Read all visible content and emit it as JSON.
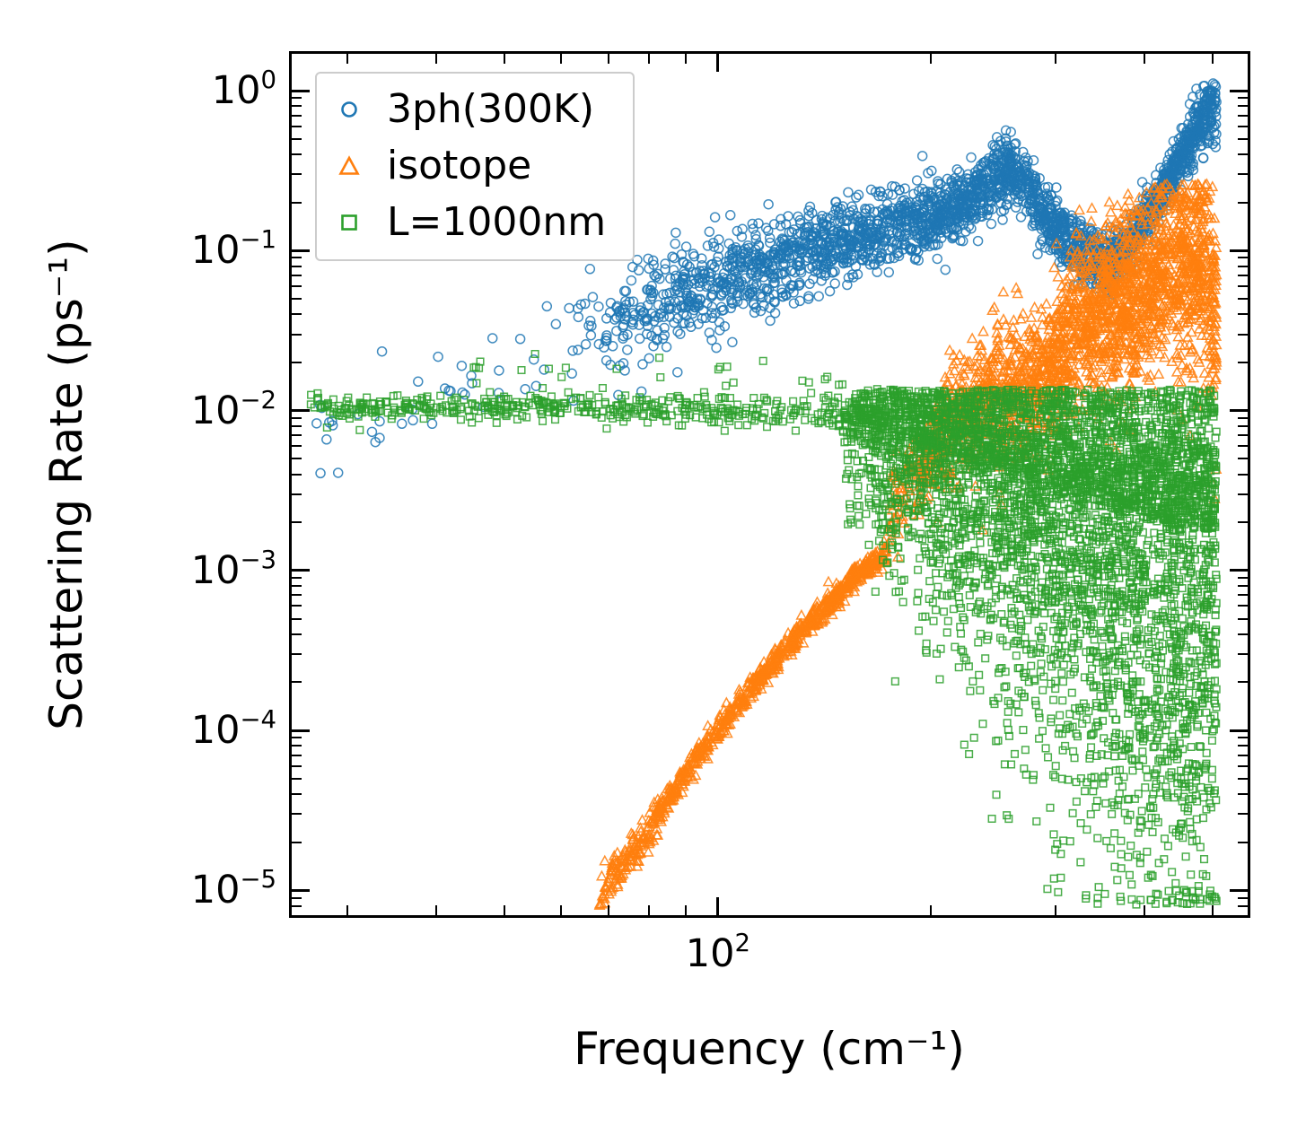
{
  "chart_data": {
    "type": "scatter",
    "title": "",
    "xlabel": "Frequency (cm⁻¹)",
    "ylabel": "Scattering Rate (ps⁻¹)",
    "xscale": "log",
    "yscale": "log",
    "xlim": [
      25,
      560
    ],
    "ylim": [
      7e-06,
      1.7
    ],
    "grid": false,
    "legend_position": "upper left",
    "x_major_ticks": [
      {
        "value": 100,
        "exponent": "2"
      }
    ],
    "x_minor_ticks": [
      30,
      40,
      50,
      60,
      70,
      80,
      90,
      200,
      300,
      400,
      500
    ],
    "y_major_ticks": [
      {
        "value": 1,
        "exponent": "0"
      },
      {
        "value": 0.1,
        "exponent": "−1"
      },
      {
        "value": 0.01,
        "exponent": "−2"
      },
      {
        "value": 0.001,
        "exponent": "−3"
      },
      {
        "value": 0.0001,
        "exponent": "−4"
      },
      {
        "value": 1e-05,
        "exponent": "−5"
      }
    ],
    "series": [
      {
        "name": "3ph(300K)",
        "color": "#1f77b4",
        "marker": "circle",
        "marker_px": 5,
        "components": [
          {
            "count": 42,
            "x_range": [
              27,
              66
            ],
            "x_power": 1.0,
            "trend": [
              [
                27,
                0.0068
              ],
              [
                40,
                0.013
              ],
              [
                55,
                0.02
              ],
              [
                66,
                0.027
              ]
            ],
            "spread": [
              [
                27,
                0.2
              ],
              [
                66,
                0.17
              ]
            ],
            "clip": [
              0.004,
              0.05
            ]
          },
          {
            "count": 2600,
            "x_range": [
              62,
              506
            ],
            "x_power": 0.62,
            "trend": [
              [
                62,
                0.028
              ],
              [
                80,
                0.045
              ],
              [
                100,
                0.065
              ],
              [
                125,
                0.09
              ],
              [
                150,
                0.115
              ],
              [
                175,
                0.14
              ],
              [
                200,
                0.165
              ],
              [
                225,
                0.2
              ],
              [
                245,
                0.27
              ],
              [
                257,
                0.34
              ],
              [
                268,
                0.28
              ],
              [
                285,
                0.18
              ],
              [
                305,
                0.13
              ],
              [
                325,
                0.1
              ],
              [
                345,
                0.085
              ],
              [
                360,
                0.085
              ],
              [
                380,
                0.11
              ],
              [
                400,
                0.16
              ],
              [
                420,
                0.22
              ],
              [
                440,
                0.32
              ],
              [
                460,
                0.46
              ],
              [
                478,
                0.62
              ],
              [
                492,
                0.8
              ],
              [
                502,
                0.88
              ],
              [
                506,
                0.7
              ]
            ],
            "spread": [
              [
                62,
                0.2
              ],
              [
                100,
                0.16
              ],
              [
                150,
                0.12
              ],
              [
                250,
                0.1
              ],
              [
                350,
                0.09
              ],
              [
                450,
                0.08
              ],
              [
                506,
                0.1
              ]
            ],
            "clip": [
              0.01,
              1.12
            ]
          }
        ],
        "points": [
          [
            28,
            0.0066
          ],
          [
            31,
            0.0095
          ]
        ]
      },
      {
        "name": "isotope",
        "color": "#ff7f0e",
        "marker": "triangle",
        "marker_px": 5.2,
        "components": [
          {
            "count": 850,
            "x_range": [
              68,
              173
            ],
            "x_power": 0.85,
            "trend": [
              [
                68,
                9e-06
              ],
              [
                80,
                2.4e-05
              ],
              [
                95,
                7.5e-05
              ],
              [
                110,
                0.00017
              ],
              [
                125,
                0.00033
              ],
              [
                140,
                0.00056
              ],
              [
                155,
                0.00088
              ],
              [
                165,
                0.0011
              ],
              [
                173,
                0.0013
              ]
            ],
            "spread": [
              [
                68,
                0.06
              ],
              [
                100,
                0.04
              ],
              [
                173,
                0.035
              ]
            ],
            "clip": [
              7.5e-06,
              0.003
            ]
          },
          {
            "count": 2300,
            "x_range": [
              174,
              506
            ],
            "x_power": 0.7,
            "trend": [
              [
                174,
                0.0022
              ],
              [
                185,
                0.0035
              ],
              [
                196,
                0.005
              ],
              [
                208,
                0.0075
              ],
              [
                220,
                0.0095
              ],
              [
                232,
                0.011
              ],
              [
                244,
                0.0115
              ],
              [
                256,
                0.012
              ],
              [
                268,
                0.014
              ],
              [
                280,
                0.016
              ],
              [
                292,
                0.019
              ],
              [
                304,
                0.023
              ],
              [
                316,
                0.028
              ],
              [
                328,
                0.036
              ],
              [
                338,
                0.048
              ],
              [
                348,
                0.038
              ],
              [
                358,
                0.05
              ],
              [
                368,
                0.042
              ],
              [
                378,
                0.055
              ],
              [
                388,
                0.045
              ],
              [
                398,
                0.065
              ],
              [
                408,
                0.052
              ],
              [
                418,
                0.075
              ],
              [
                428,
                0.06
              ],
              [
                438,
                0.085
              ],
              [
                448,
                0.068
              ],
              [
                458,
                0.095
              ],
              [
                468,
                0.075
              ],
              [
                478,
                0.105
              ],
              [
                488,
                0.08
              ],
              [
                496,
                0.06
              ],
              [
                506,
                0.045
              ]
            ],
            "spread": [
              [
                174,
                0.12
              ],
              [
                210,
                0.18
              ],
              [
                260,
                0.22
              ],
              [
                320,
                0.25
              ],
              [
                400,
                0.3
              ],
              [
                506,
                0.33
              ]
            ],
            "clip": [
              1e-05,
              0.26
            ]
          }
        ],
        "points": [
          [
            253,
            0.055
          ],
          [
            261,
            0.033
          ],
          [
            247,
            0.021
          ],
          [
            499,
            0.0035
          ],
          [
            503,
            0.0028
          ],
          [
            505,
            0.016
          ]
        ]
      },
      {
        "name": "L=1000nm",
        "color": "#2ca02c",
        "marker": "square",
        "marker_px": 4.6,
        "components": [
          {
            "count": 480,
            "x_range": [
              26.5,
              172
            ],
            "x_power": 1.05,
            "trend": [
              [
                26.5,
                0.0105
              ],
              [
                50,
                0.0104
              ],
              [
                80,
                0.0102
              ],
              [
                110,
                0.0099
              ],
              [
                140,
                0.0096
              ],
              [
                172,
                0.0092
              ]
            ],
            "spread": [
              [
                26.5,
                0.05
              ],
              [
                80,
                0.045
              ],
              [
                172,
                0.05
              ]
            ],
            "clip": [
              0.007,
              0.016
            ]
          },
          {
            "count": 30,
            "x_range": [
              45,
              168
            ],
            "x_power": 1.0,
            "trend": [
              [
                45,
                0.021
              ],
              [
                70,
                0.019
              ],
              [
                100,
                0.017
              ],
              [
                130,
                0.0155
              ],
              [
                168,
                0.0145
              ]
            ],
            "spread": [
              [
                45,
                0.07
              ],
              [
                168,
                0.06
              ]
            ],
            "clip": [
              0.012,
              0.026
            ]
          },
          {
            "count": 4600,
            "x_range": [
              150,
              506
            ],
            "x_power": 0.72,
            "trend": [
              [
                150,
                0.0085
              ],
              [
                175,
                0.0072
              ],
              [
                200,
                0.006
              ],
              [
                230,
                0.0048
              ],
              [
                260,
                0.004
              ],
              [
                290,
                0.0033
              ],
              [
                320,
                0.0028
              ],
              [
                360,
                0.0024
              ],
              [
                400,
                0.0021
              ],
              [
                450,
                0.0019
              ],
              [
                506,
                0.0018
              ]
            ],
            "spread_up": [
              [
                150,
                0.1
              ],
              [
                200,
                0.25
              ],
              [
                250,
                0.33
              ],
              [
                300,
                0.4
              ],
              [
                380,
                0.47
              ],
              [
                506,
                0.5
              ]
            ],
            "spread_down": [
              [
                150,
                0.25
              ],
              [
                200,
                0.55
              ],
              [
                250,
                0.75
              ],
              [
                300,
                0.95
              ],
              [
                350,
                1.05
              ],
              [
                420,
                1.15
              ],
              [
                506,
                1.2
              ]
            ],
            "clip": [
              8e-06,
              0.0135
            ]
          }
        ],
        "points": [
          [
            230,
            9e-05
          ],
          [
            262,
            0.00035
          ],
          [
            305,
            1.2e-05
          ],
          [
            345,
            1.05e-05
          ],
          [
            360,
            3e-05
          ],
          [
            332,
            2.4e-05
          ],
          [
            300,
            6e-05
          ],
          [
            395,
            1.6e-05
          ],
          [
            412,
            4e-05
          ],
          [
            448,
            2.2e-05
          ],
          [
            478,
            5.5e-05
          ],
          [
            495,
            3.5e-05
          ],
          [
            365,
            8e-05
          ],
          [
            420,
            0.00012
          ]
        ]
      }
    ]
  }
}
